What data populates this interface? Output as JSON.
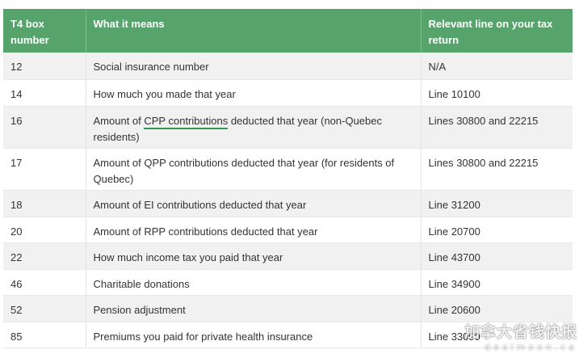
{
  "table": {
    "headers": [
      "T4 box number",
      "What it means",
      "Relevant line on your tax return"
    ],
    "rows": [
      {
        "box": "12",
        "meaning": "Social insurance number",
        "line": "N/A"
      },
      {
        "box": "14",
        "meaning": "How much you made that year",
        "line": "Line 10100"
      },
      {
        "box": "16",
        "meaning_pre": "Amount of ",
        "meaning_link": "CPP contributions",
        "meaning_post": " deducted that year (non-Quebec residents)",
        "line": "Lines 30800 and 22215"
      },
      {
        "box": "17",
        "meaning": "Amount of QPP contributions deducted that year (for residents of Quebec)",
        "line": "Lines 30800 and 22215"
      },
      {
        "box": "18",
        "meaning": "Amount of EI contributions deducted that year",
        "line": "Line 31200"
      },
      {
        "box": "20",
        "meaning": "Amount of RPP contributions deducted that year",
        "line": "Line 20700"
      },
      {
        "box": "22",
        "meaning": "How much income tax you paid that year",
        "line": "Line 43700"
      },
      {
        "box": "46",
        "meaning": "Charitable donations",
        "line": "Line 34900"
      },
      {
        "box": "52",
        "meaning": "Pension adjustment",
        "line": "Line 20600"
      },
      {
        "box": "85",
        "meaning": "Premiums you paid for private health insurance",
        "line": "Line 33099"
      }
    ]
  },
  "watermark": {
    "cn": "加拿大省钱快报",
    "en": "dealmoon.ca"
  },
  "colors": {
    "header_bg": "#56a46c",
    "link_underline": "#2e9c4e",
    "alt_row": "#f1f1f1"
  }
}
